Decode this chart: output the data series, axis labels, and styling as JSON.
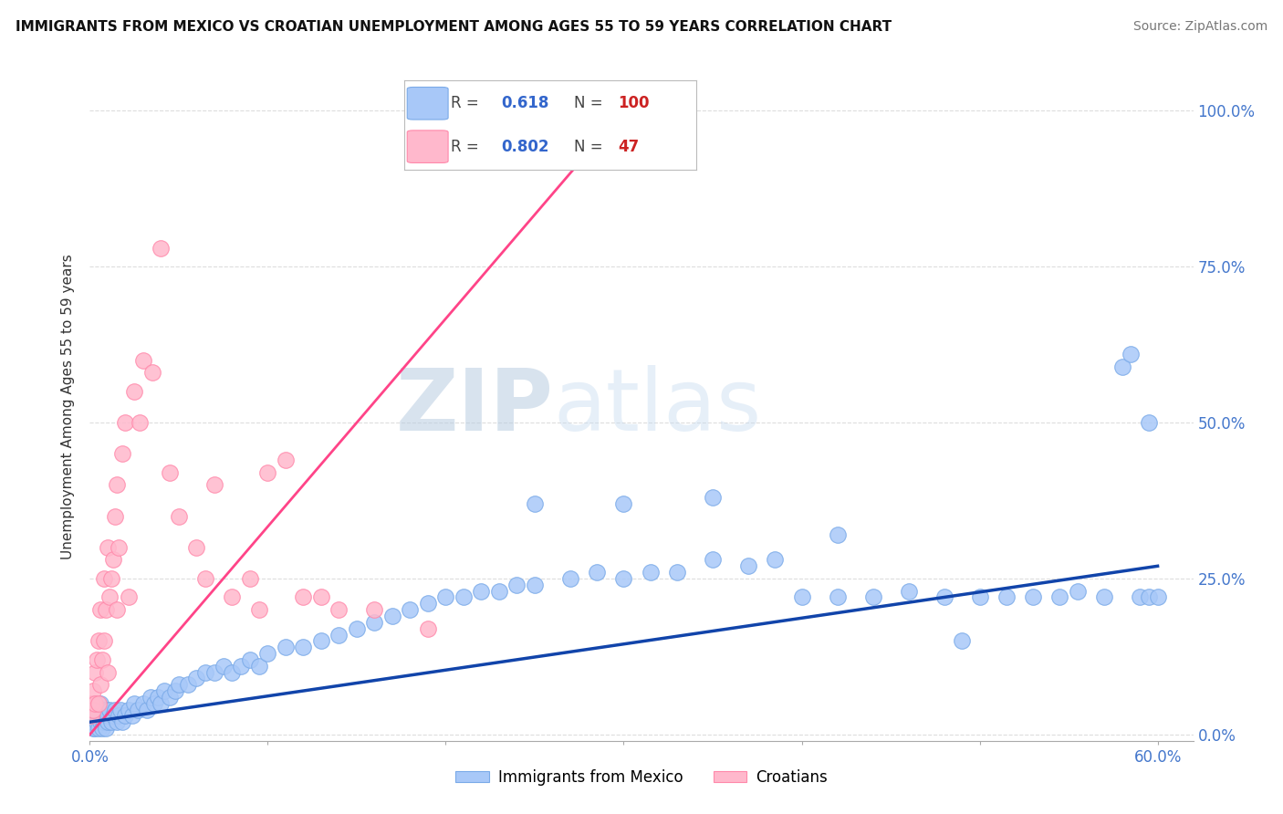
{
  "title": "IMMIGRANTS FROM MEXICO VS CROATIAN UNEMPLOYMENT AMONG AGES 55 TO 59 YEARS CORRELATION CHART",
  "source": "Source: ZipAtlas.com",
  "ylabel": "Unemployment Among Ages 55 to 59 years",
  "ytick_labels": [
    "0.0%",
    "25.0%",
    "50.0%",
    "75.0%",
    "100.0%"
  ],
  "ytick_values": [
    0.0,
    0.25,
    0.5,
    0.75,
    1.0
  ],
  "xlim": [
    0.0,
    0.62
  ],
  "ylim": [
    -0.01,
    1.06
  ],
  "legend_r_blue": "0.618",
  "legend_n_blue": "100",
  "legend_r_pink": "0.802",
  "legend_n_pink": "47",
  "blue_color": "#A8C8F8",
  "blue_edge_color": "#7AAAE8",
  "pink_color": "#FFB8CC",
  "pink_edge_color": "#FF88AA",
  "blue_line_color": "#1144AA",
  "pink_line_color": "#FF4488",
  "watermark_color": "#C8DDF0",
  "title_fontsize": 11,
  "source_fontsize": 10,
  "tick_fontsize": 12,
  "ylabel_fontsize": 11,
  "blue_x": [
    0.001,
    0.001,
    0.002,
    0.002,
    0.002,
    0.003,
    0.003,
    0.003,
    0.004,
    0.004,
    0.005,
    0.005,
    0.006,
    0.006,
    0.007,
    0.007,
    0.008,
    0.008,
    0.009,
    0.009,
    0.01,
    0.01,
    0.011,
    0.012,
    0.013,
    0.014,
    0.015,
    0.016,
    0.017,
    0.018,
    0.02,
    0.022,
    0.024,
    0.025,
    0.027,
    0.03,
    0.032,
    0.034,
    0.036,
    0.038,
    0.04,
    0.042,
    0.045,
    0.048,
    0.05,
    0.055,
    0.06,
    0.065,
    0.07,
    0.075,
    0.08,
    0.085,
    0.09,
    0.095,
    0.1,
    0.11,
    0.12,
    0.13,
    0.14,
    0.15,
    0.16,
    0.17,
    0.18,
    0.19,
    0.2,
    0.21,
    0.22,
    0.23,
    0.24,
    0.25,
    0.27,
    0.285,
    0.3,
    0.315,
    0.33,
    0.35,
    0.37,
    0.385,
    0.4,
    0.42,
    0.44,
    0.46,
    0.48,
    0.49,
    0.5,
    0.515,
    0.53,
    0.545,
    0.555,
    0.57,
    0.58,
    0.585,
    0.59,
    0.595,
    0.595,
    0.6,
    0.25,
    0.3,
    0.35,
    0.42
  ],
  "blue_y": [
    0.02,
    0.03,
    0.01,
    0.02,
    0.04,
    0.01,
    0.03,
    0.05,
    0.02,
    0.04,
    0.01,
    0.03,
    0.02,
    0.05,
    0.01,
    0.04,
    0.02,
    0.03,
    0.01,
    0.04,
    0.02,
    0.03,
    0.04,
    0.02,
    0.03,
    0.04,
    0.02,
    0.03,
    0.04,
    0.02,
    0.03,
    0.04,
    0.03,
    0.05,
    0.04,
    0.05,
    0.04,
    0.06,
    0.05,
    0.06,
    0.05,
    0.07,
    0.06,
    0.07,
    0.08,
    0.08,
    0.09,
    0.1,
    0.1,
    0.11,
    0.1,
    0.11,
    0.12,
    0.11,
    0.13,
    0.14,
    0.14,
    0.15,
    0.16,
    0.17,
    0.18,
    0.19,
    0.2,
    0.21,
    0.22,
    0.22,
    0.23,
    0.23,
    0.24,
    0.24,
    0.25,
    0.26,
    0.25,
    0.26,
    0.26,
    0.28,
    0.27,
    0.28,
    0.22,
    0.22,
    0.22,
    0.23,
    0.22,
    0.15,
    0.22,
    0.22,
    0.22,
    0.22,
    0.23,
    0.22,
    0.59,
    0.61,
    0.22,
    0.22,
    0.5,
    0.22,
    0.37,
    0.37,
    0.38,
    0.32
  ],
  "pink_x": [
    0.001,
    0.001,
    0.002,
    0.002,
    0.003,
    0.003,
    0.004,
    0.005,
    0.005,
    0.006,
    0.006,
    0.007,
    0.008,
    0.008,
    0.009,
    0.01,
    0.01,
    0.011,
    0.012,
    0.013,
    0.014,
    0.015,
    0.015,
    0.016,
    0.018,
    0.02,
    0.022,
    0.025,
    0.028,
    0.03,
    0.035,
    0.04,
    0.045,
    0.05,
    0.06,
    0.065,
    0.07,
    0.08,
    0.09,
    0.095,
    0.1,
    0.11,
    0.12,
    0.13,
    0.14,
    0.16,
    0.19
  ],
  "pink_y": [
    0.03,
    0.05,
    0.04,
    0.07,
    0.05,
    0.1,
    0.12,
    0.05,
    0.15,
    0.08,
    0.2,
    0.12,
    0.15,
    0.25,
    0.2,
    0.1,
    0.3,
    0.22,
    0.25,
    0.28,
    0.35,
    0.2,
    0.4,
    0.3,
    0.45,
    0.5,
    0.22,
    0.55,
    0.5,
    0.6,
    0.58,
    0.78,
    0.42,
    0.35,
    0.3,
    0.25,
    0.4,
    0.22,
    0.25,
    0.2,
    0.42,
    0.44,
    0.22,
    0.22,
    0.2,
    0.2,
    0.17
  ],
  "pink_line_x": [
    0.0,
    0.3
  ],
  "pink_line_y": [
    0.0,
    1.0
  ],
  "blue_line_x": [
    0.0,
    0.6
  ],
  "blue_line_y": [
    0.02,
    0.27
  ]
}
